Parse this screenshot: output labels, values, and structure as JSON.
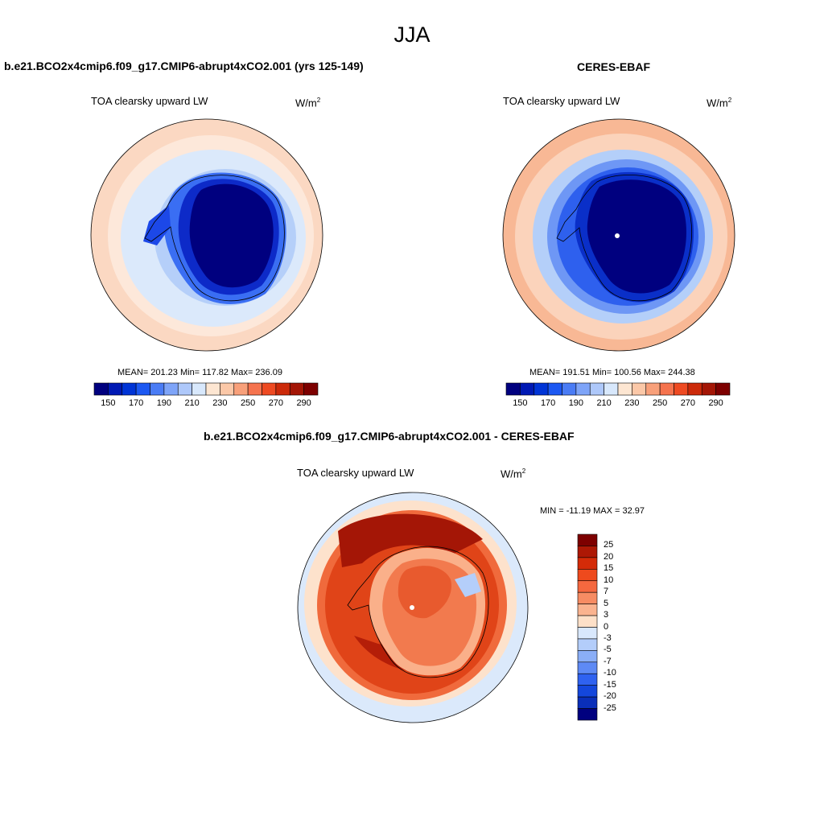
{
  "figure": {
    "title": "JJA"
  },
  "panels": {
    "model": {
      "title": "b.e21.BCO2x4cmip6.f09_g17.CMIP6-abrupt4xCO2.001 (yrs 125-149)",
      "variable": "TOA clearsky upward LW",
      "units_base": "W/m",
      "units_exp": "2",
      "stats": "MEAN= 201.23  Min= 117.82  Max= 236.09",
      "mean": 201.23,
      "min": 117.82,
      "max": 236.09
    },
    "obs": {
      "title": "CERES-EBAF",
      "variable": "TOA clearsky upward LW",
      "units_base": "W/m",
      "units_exp": "2",
      "stats": "MEAN= 191.51  Min= 100.56  Max= 244.38",
      "mean": 191.51,
      "min": 100.56,
      "max": 244.38
    },
    "diff": {
      "title": "b.e21.BCO2x4cmip6.f09_g17.CMIP6-abrupt4xCO2.001 - CERES-EBAF",
      "variable": "TOA clearsky upward LW",
      "units_base": "W/m",
      "units_exp": "2",
      "stats": "MIN = -11.19 MAX =  32.97",
      "min": -11.19,
      "max": 32.97
    }
  },
  "colorbar_main": {
    "colors": [
      "#00007f",
      "#0019b4",
      "#0034d6",
      "#1c58f2",
      "#4a7cf5",
      "#7ea4f8",
      "#aec8fa",
      "#d8e8fc",
      "#fde6d2",
      "#fbc8a8",
      "#f8a07a",
      "#f5734e",
      "#ee4a22",
      "#cc2a0a",
      "#a41606",
      "#7d0000"
    ],
    "tick_labels": [
      "150",
      "170",
      "190",
      "210",
      "230",
      "250",
      "270",
      "290"
    ]
  },
  "colorbar_diff": {
    "colors": [
      "#7d0000",
      "#ad1805",
      "#d42b08",
      "#ee4a1d",
      "#f5683f",
      "#f78c63",
      "#fab38f",
      "#fde0c8",
      "#d9e8fc",
      "#b3cdfa",
      "#8aaef7",
      "#5e8af5",
      "#2f62f0",
      "#1447dc",
      "#0a2fb9",
      "#00007f"
    ],
    "tick_labels": [
      "25",
      "20",
      "15",
      "10",
      "7",
      "5",
      "3",
      "0",
      "-3",
      "-5",
      "-7",
      "-10",
      "-15",
      "-20",
      "-25"
    ]
  }
}
